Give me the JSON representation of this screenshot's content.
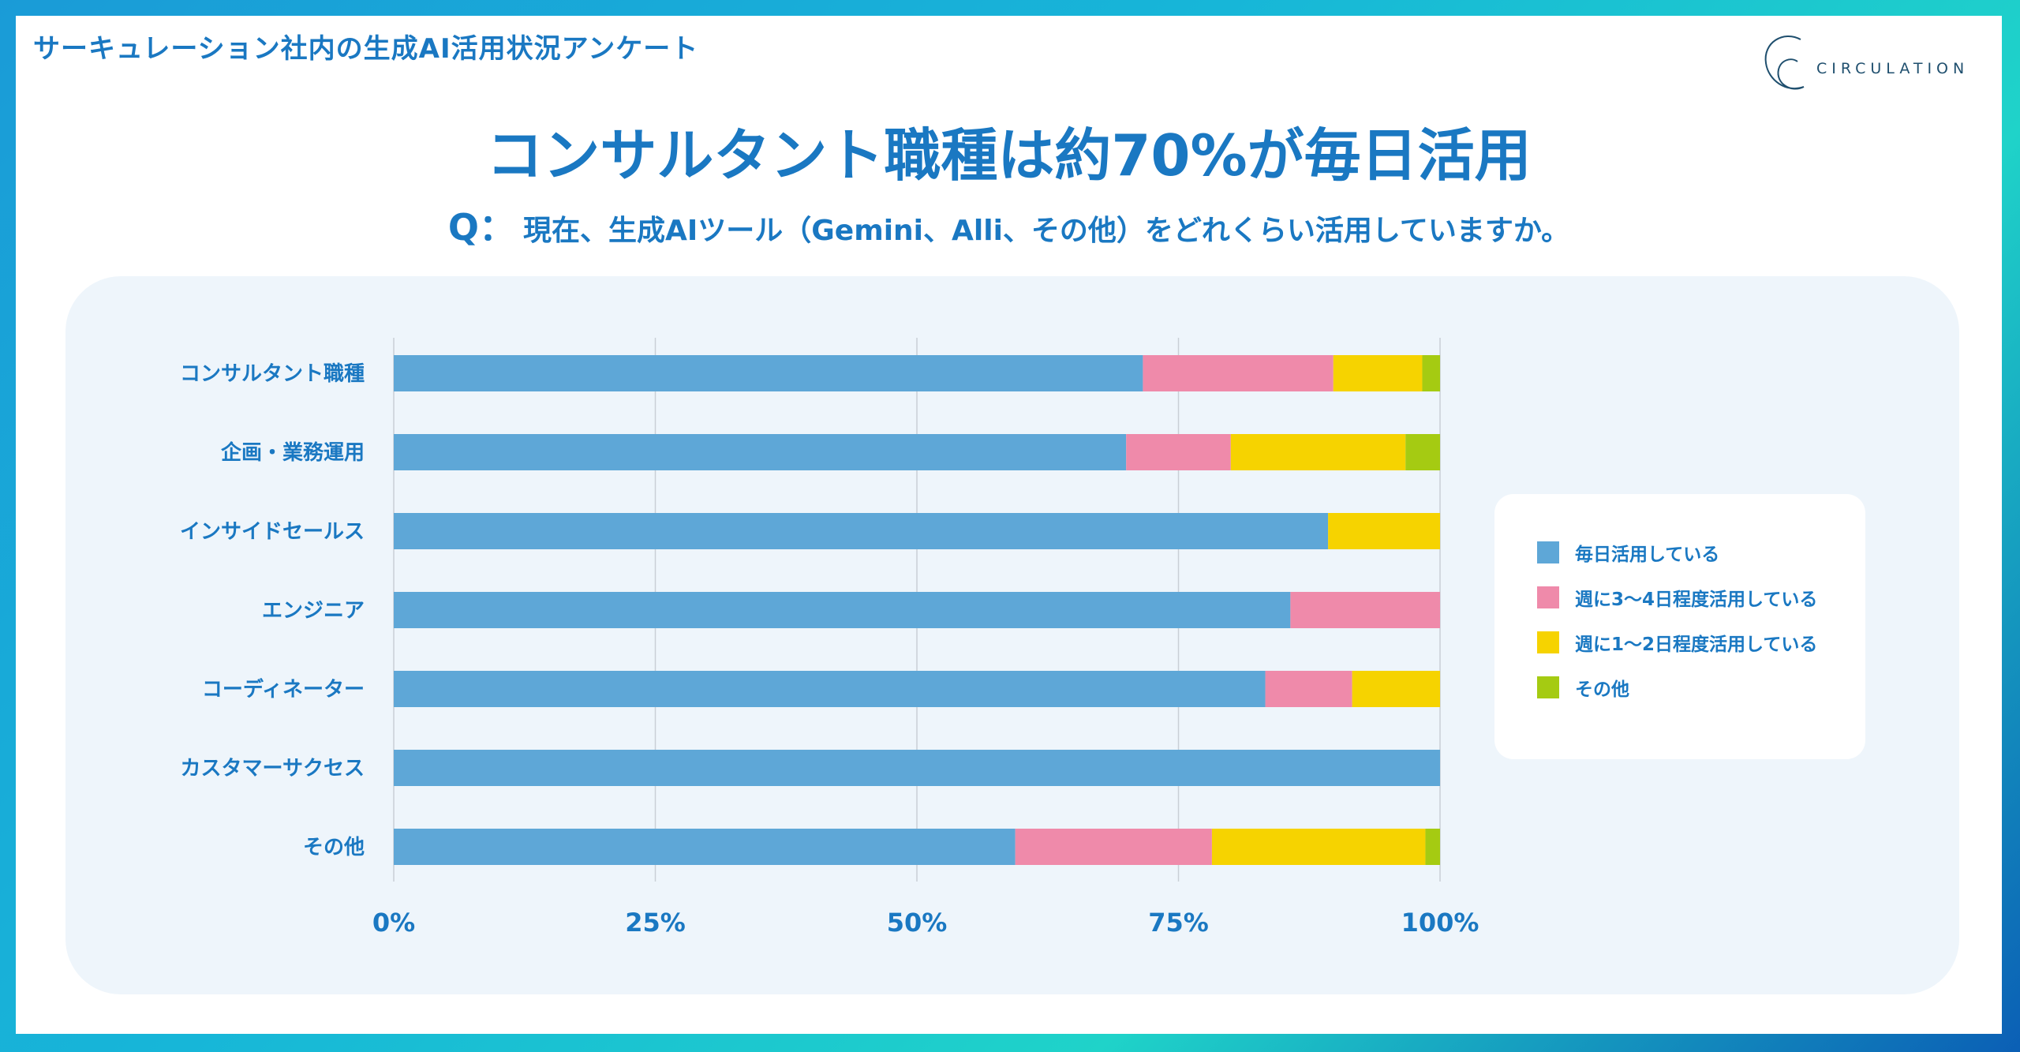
{
  "header": {
    "title": "サーキュレーション社内の生成AI活用状況アンケート"
  },
  "logo": {
    "text": "CIRCULATION"
  },
  "headline": "コンサルタント職種は約70%が毎日活用",
  "question": {
    "mark": "Q：",
    "text": "現在、生成AIツール（Gemini、Alli、その他）をどれくらい活用していますか。"
  },
  "chart_data": {
    "type": "bar",
    "orientation": "horizontal",
    "stacked": true,
    "percent": true,
    "title": "",
    "xlabel": "",
    "ylabel": "",
    "xlim": [
      0,
      100
    ],
    "categories": [
      "コンサルタント職種",
      "企画・業務運用",
      "インサイドセールス",
      "エンジニア",
      "コーディネーター",
      "カスタマーサクセス",
      "その他"
    ],
    "x_ticks": [
      "0%",
      "25%",
      "50%",
      "75%",
      "100%"
    ],
    "x_tick_values": [
      0,
      25,
      50,
      75,
      100
    ],
    "series": [
      {
        "name": "毎日活用している",
        "color": "#5ea7d7",
        "values": [
          71.6,
          70.0,
          89.3,
          85.7,
          83.3,
          100,
          59.4
        ]
      },
      {
        "name": "週に3〜4日程度活用している",
        "color": "#ef8aaa",
        "values": [
          18.2,
          10.0,
          0,
          14.3,
          8.3,
          0,
          18.8
        ]
      },
      {
        "name": "週に1〜2日程度活用している",
        "color": "#f6d300",
        "values": [
          8.5,
          16.7,
          10.7,
          0,
          8.4,
          0,
          20.4
        ]
      },
      {
        "name": "その他",
        "color": "#a5cb12",
        "values": [
          1.7,
          3.3,
          0,
          0,
          0,
          0,
          1.4
        ]
      }
    ],
    "grid": true,
    "legend_position": "right"
  }
}
